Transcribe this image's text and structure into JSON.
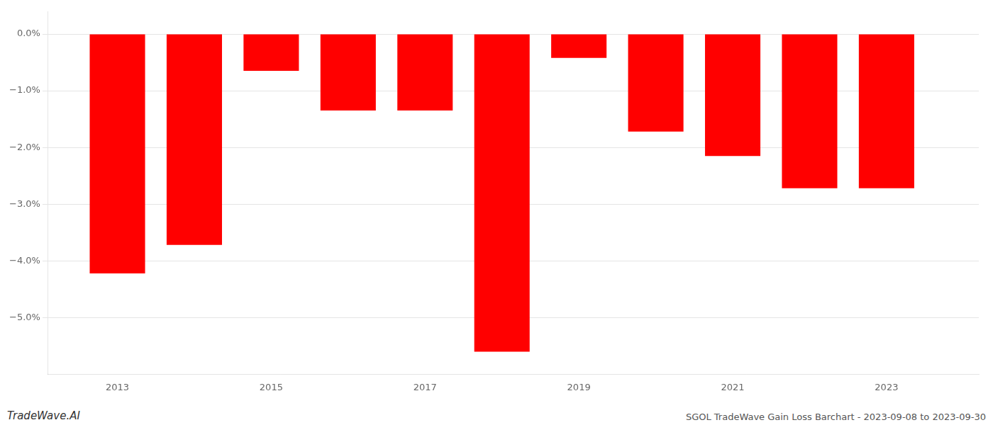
{
  "chart_data": {
    "type": "bar",
    "x": [
      2013,
      2014,
      2015,
      2016,
      2017,
      2018,
      2019,
      2020,
      2021,
      2022,
      2023
    ],
    "values": [
      -4.22,
      -3.72,
      -0.65,
      -1.35,
      -1.35,
      -5.6,
      -0.42,
      -1.72,
      -2.15,
      -2.72,
      -2.72
    ],
    "color": "#FF0000",
    "xlim": [
      2012.1,
      2024.2
    ],
    "xticks": [
      2013,
      2015,
      2017,
      2019,
      2021,
      2023
    ],
    "ylim": [
      -6.0,
      0.4
    ],
    "yticks": [
      {
        "value": 0.0,
        "label": "0.0%"
      },
      {
        "value": -1.0,
        "label": "−1.0%"
      },
      {
        "value": -2.0,
        "label": "−2.0%"
      },
      {
        "value": -3.0,
        "label": "−3.0%"
      },
      {
        "value": -4.0,
        "label": "−4.0%"
      },
      {
        "value": -5.0,
        "label": "−5.0%"
      }
    ],
    "grid": true,
    "annotations": [
      "TradeWave.AI",
      "SGOL TradeWave Gain Loss Barchart - 2023-09-08 to 2023-09-30"
    ]
  }
}
